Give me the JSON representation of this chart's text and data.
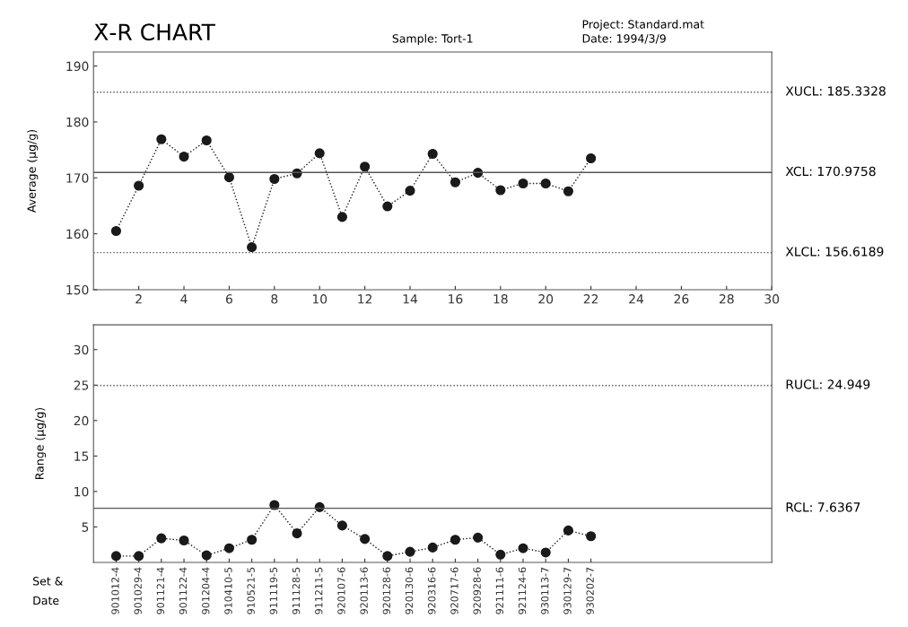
{
  "chart_data": [
    {
      "type": "line",
      "title": "X̄-R CHART",
      "ylabel": "Average (µg/g)",
      "annotations": [
        "Sample: Tort-1",
        "Project: Standard.mat",
        "Date: 1994/3/9"
      ],
      "x": [
        1,
        2,
        3,
        4,
        5,
        6,
        7,
        8,
        9,
        10,
        11,
        12,
        13,
        14,
        15,
        16,
        17,
        18,
        19,
        20,
        21,
        22
      ],
      "series": [
        {
          "color": "#1a1a1a",
          "values": [
            160.5,
            168.6,
            176.9,
            173.8,
            176.7,
            170.1,
            157.6,
            169.8,
            170.8,
            174.4,
            163.0,
            172.0,
            164.9,
            167.7,
            174.3,
            169.2,
            170.9,
            167.8,
            169.0,
            169.0,
            167.6,
            173.5
          ]
        }
      ],
      "marker": "circle",
      "line_style": "dotted",
      "xlim": [
        0,
        30
      ],
      "xticks": [
        2,
        4,
        6,
        8,
        10,
        12,
        14,
        16,
        18,
        20,
        22,
        24,
        26,
        28,
        30
      ],
      "ylim": [
        150,
        192.5
      ],
      "yticks": [
        150,
        160,
        170,
        180,
        190
      ],
      "ref_lines": [
        {
          "axis": "y",
          "value": 185.3328,
          "label": "XUCL: 185.3328",
          "line_style": "dotted",
          "color": "#555555"
        },
        {
          "axis": "y",
          "value": 170.9758,
          "label": "XCL: 170.9758",
          "line_style": "solid",
          "color": "#555555"
        },
        {
          "axis": "y",
          "value": 156.6189,
          "label": "XLCL: 156.6189",
          "line_style": "dotted",
          "color": "#555555"
        }
      ]
    },
    {
      "type": "line",
      "ylabel": "Range (µg/g)",
      "xlabel": "Set &\nDate",
      "categories": [
        "901012-4",
        "901029-4",
        "901121-4",
        "901122-4",
        "901204-4",
        "910410-5",
        "910521-5",
        "911119-5",
        "911128-5",
        "911211-5",
        "920107-6",
        "920113-6",
        "920128-6",
        "920130-6",
        "920316-6",
        "920717-6",
        "920928-6",
        "921111-6",
        "921124-6",
        "930113-7",
        "930129-7",
        "930202-7"
      ],
      "series": [
        {
          "color": "#1a1a1a",
          "values": [
            0.9,
            0.9,
            3.4,
            3.1,
            1.0,
            2.0,
            3.2,
            8.1,
            4.1,
            7.8,
            5.2,
            3.3,
            0.9,
            1.5,
            2.1,
            3.2,
            3.5,
            1.1,
            2.0,
            1.4,
            4.5,
            3.7
          ]
        }
      ],
      "marker": "circle",
      "line_style": "dotted",
      "ylim": [
        0,
        33.5
      ],
      "yticks": [
        5,
        10,
        15,
        20,
        25,
        30
      ],
      "ref_lines": [
        {
          "axis": "y",
          "value": 24.949,
          "label": "RUCL: 24.949",
          "line_style": "dotted",
          "color": "#555555"
        },
        {
          "axis": "y",
          "value": 7.6367,
          "label": "RCL: 7.6367",
          "line_style": "solid",
          "color": "#555555"
        }
      ]
    }
  ]
}
